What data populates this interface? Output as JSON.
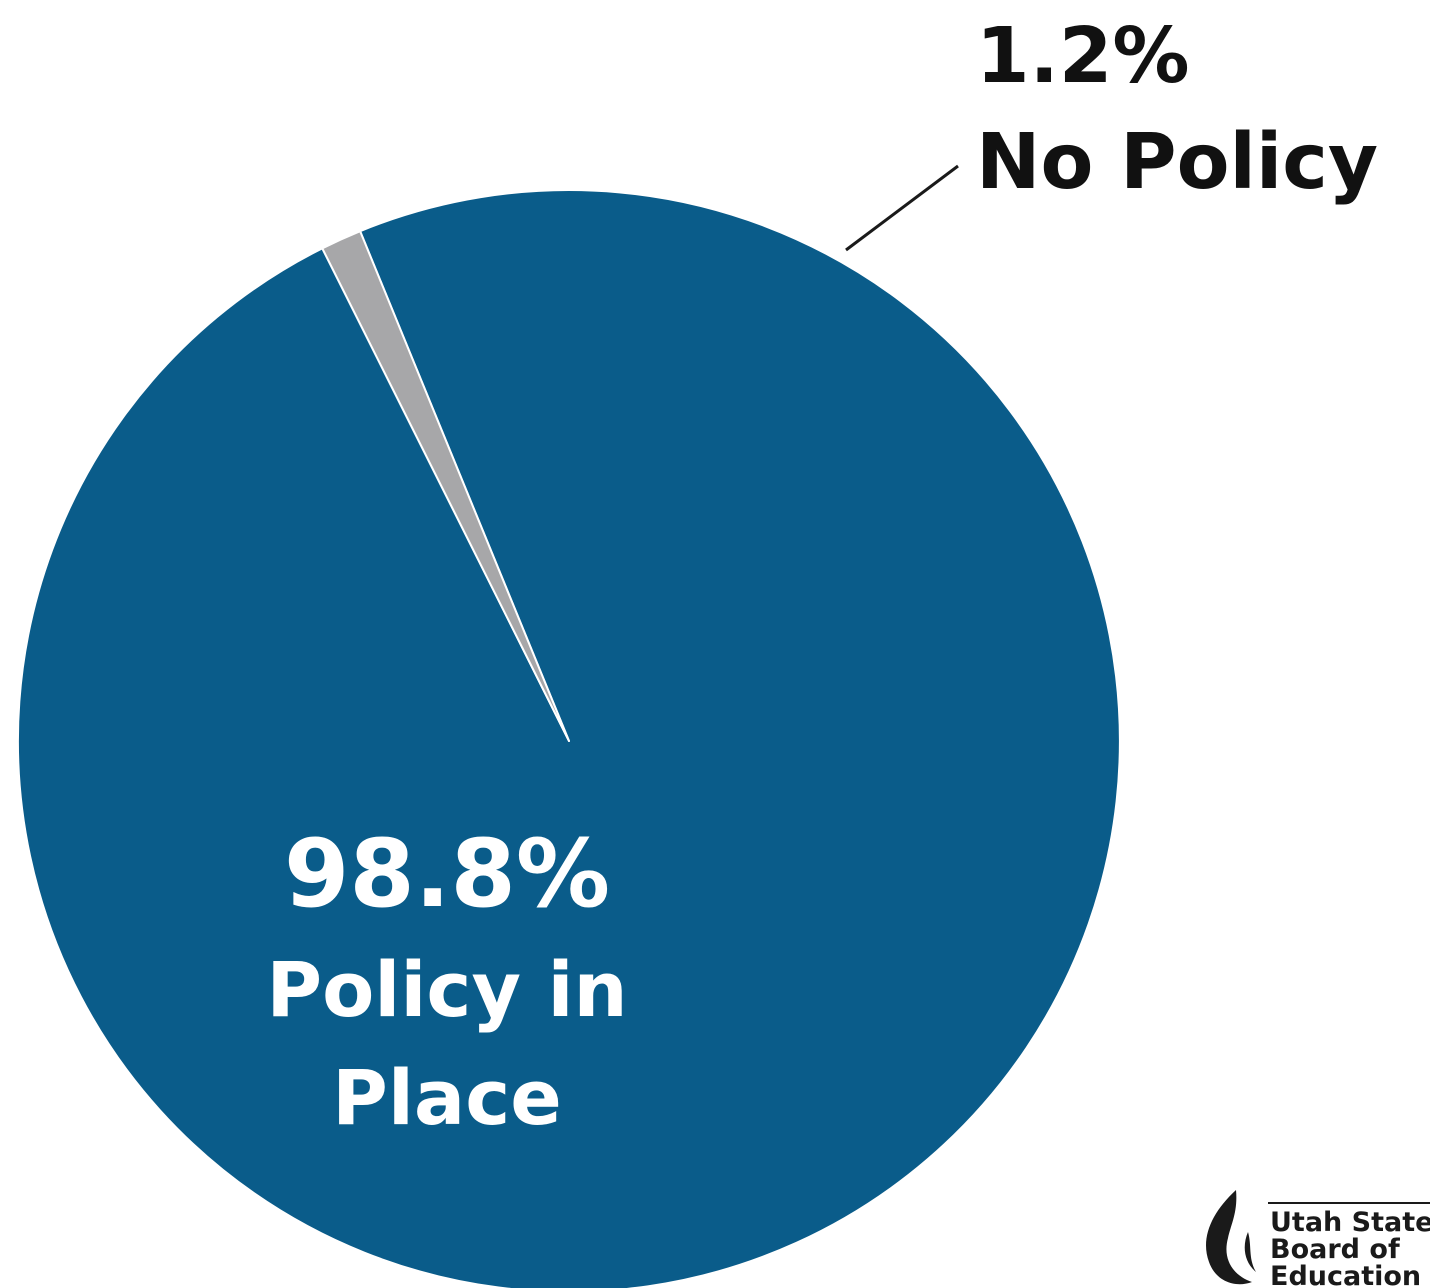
{
  "chart_data": {
    "type": "pie",
    "slices": [
      {
        "label": "Policy in Place",
        "value": 98.8,
        "value_label": "98.8%",
        "color": "#0a5c8a"
      },
      {
        "label": "No Policy",
        "value": 1.2,
        "value_label": "1.2%",
        "color": "#a7a7a9"
      }
    ],
    "labels": {
      "major_value": "98.8%",
      "major_line1": "Policy in",
      "major_line2": "Place",
      "minor_value": "1.2%",
      "minor_text": "No Policy"
    },
    "leader_line_color": "#1a1a1a",
    "slice_separator_color": "#ffffff"
  },
  "logo": {
    "line1": "Utah State",
    "line2": "Board of",
    "line3": "Education"
  }
}
